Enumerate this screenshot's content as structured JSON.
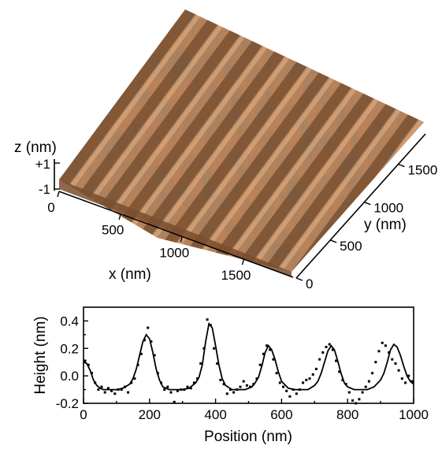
{
  "chart_data": [
    {
      "type": "surface",
      "xlabel": "x (nm)",
      "ylabel": "y (nm)",
      "zlabel": "z (nm)",
      "x_ticks": [
        "0",
        "500",
        "1000",
        "1500"
      ],
      "y_ticks": [
        "0",
        "500",
        "1000",
        "1500"
      ],
      "z_ticks": [
        "+1",
        "-1"
      ],
      "xlim": [
        0,
        1900
      ],
      "ylim": [
        0,
        1900
      ],
      "zlim": [
        -1,
        1
      ],
      "ridge_period_nm": 190,
      "surface_color": "#b9825a",
      "grid": false
    },
    {
      "type": "line",
      "xlabel": "Position (nm)",
      "ylabel": "Height (nm)",
      "xlim": [
        0,
        1000
      ],
      "ylim": [
        -0.2,
        0.5
      ],
      "x_ticks": [
        "0",
        "200",
        "400",
        "600",
        "800",
        "1000"
      ],
      "y_ticks": [
        "-0.2",
        "0.0",
        "0.2",
        "0.4"
      ],
      "grid": false,
      "series": [
        {
          "style": "solid",
          "x": [
            0,
            10,
            20,
            30,
            40,
            50,
            60,
            80,
            100,
            120,
            140,
            150,
            160,
            170,
            180,
            190,
            200,
            210,
            220,
            230,
            240,
            260,
            280,
            300,
            320,
            340,
            350,
            360,
            370,
            380,
            390,
            400,
            410,
            420,
            430,
            450,
            470,
            490,
            510,
            520,
            530,
            540,
            550,
            560,
            570,
            580,
            590,
            600,
            620,
            640,
            660,
            680,
            700,
            710,
            720,
            730,
            740,
            750,
            760,
            770,
            780,
            790,
            800,
            820,
            840,
            860,
            880,
            900,
            910,
            920,
            930,
            940,
            950,
            960,
            970,
            980,
            990,
            1000
          ],
          "y": [
            0.1,
            0.09,
            0.04,
            -0.03,
            -0.07,
            -0.09,
            -0.1,
            -0.1,
            -0.1,
            -0.09,
            -0.06,
            -0.02,
            0.05,
            0.15,
            0.25,
            0.3,
            0.27,
            0.17,
            0.05,
            -0.03,
            -0.08,
            -0.1,
            -0.1,
            -0.1,
            -0.09,
            -0.05,
            -0.01,
            0.08,
            0.25,
            0.38,
            0.35,
            0.22,
            0.08,
            -0.02,
            -0.07,
            -0.1,
            -0.1,
            -0.1,
            -0.08,
            -0.05,
            -0.01,
            0.07,
            0.17,
            0.22,
            0.19,
            0.12,
            0.03,
            -0.04,
            -0.09,
            -0.1,
            -0.1,
            -0.1,
            -0.07,
            -0.04,
            0.02,
            0.1,
            0.18,
            0.22,
            0.19,
            0.11,
            0.02,
            -0.05,
            -0.08,
            -0.1,
            -0.1,
            -0.1,
            -0.08,
            -0.03,
            0.02,
            0.1,
            0.19,
            0.23,
            0.21,
            0.15,
            0.07,
            0.0,
            -0.04,
            -0.06
          ]
        },
        {
          "style": "markers",
          "x": [
            5,
            15,
            25,
            35,
            45,
            55,
            65,
            75,
            85,
            95,
            105,
            115,
            125,
            135,
            145,
            155,
            165,
            175,
            185,
            195,
            205,
            215,
            225,
            235,
            245,
            255,
            265,
            275,
            285,
            295,
            305,
            315,
            325,
            335,
            345,
            355,
            365,
            375,
            385,
            395,
            405,
            415,
            425,
            435,
            445,
            455,
            465,
            475,
            485,
            495,
            505,
            515,
            525,
            535,
            545,
            555,
            565,
            575,
            585,
            595,
            605,
            615,
            625,
            635,
            645,
            655,
            665,
            675,
            685,
            695,
            705,
            715,
            725,
            735,
            745,
            755,
            765,
            775,
            785,
            795,
            805,
            815,
            825,
            835,
            845,
            855,
            865,
            875,
            885,
            895,
            905,
            915,
            925,
            935,
            945,
            955,
            965,
            975,
            985,
            995
          ],
          "y": [
            0.11,
            0.08,
            0.02,
            -0.05,
            -0.1,
            -0.08,
            -0.12,
            -0.09,
            -0.11,
            -0.13,
            -0.1,
            -0.1,
            -0.08,
            -0.12,
            -0.05,
            -0.02,
            0.08,
            0.16,
            0.26,
            0.35,
            0.25,
            0.15,
            0.02,
            -0.05,
            -0.1,
            -0.08,
            -0.12,
            -0.19,
            -0.11,
            -0.1,
            -0.1,
            -0.08,
            -0.09,
            -0.05,
            -0.02,
            0.09,
            0.2,
            0.41,
            0.37,
            0.2,
            0.09,
            -0.03,
            -0.06,
            -0.13,
            -0.1,
            -0.12,
            -0.1,
            -0.08,
            -0.04,
            -0.07,
            -0.08,
            -0.06,
            -0.02,
            0.08,
            0.16,
            0.22,
            0.19,
            0.12,
            0.02,
            -0.05,
            -0.08,
            -0.11,
            -0.15,
            -0.1,
            -0.13,
            -0.1,
            -0.05,
            -0.03,
            -0.02,
            0.01,
            0.05,
            0.12,
            0.17,
            0.21,
            0.23,
            0.19,
            0.11,
            0.03,
            -0.03,
            -0.06,
            -0.12,
            -0.18,
            -0.2,
            -0.17,
            -0.12,
            -0.08,
            -0.04,
            0.02,
            0.1,
            0.18,
            0.24,
            0.22,
            0.17,
            0.12,
            0.09,
            0.04,
            -0.02,
            -0.05,
            0.0,
            -0.04
          ]
        }
      ]
    }
  ]
}
